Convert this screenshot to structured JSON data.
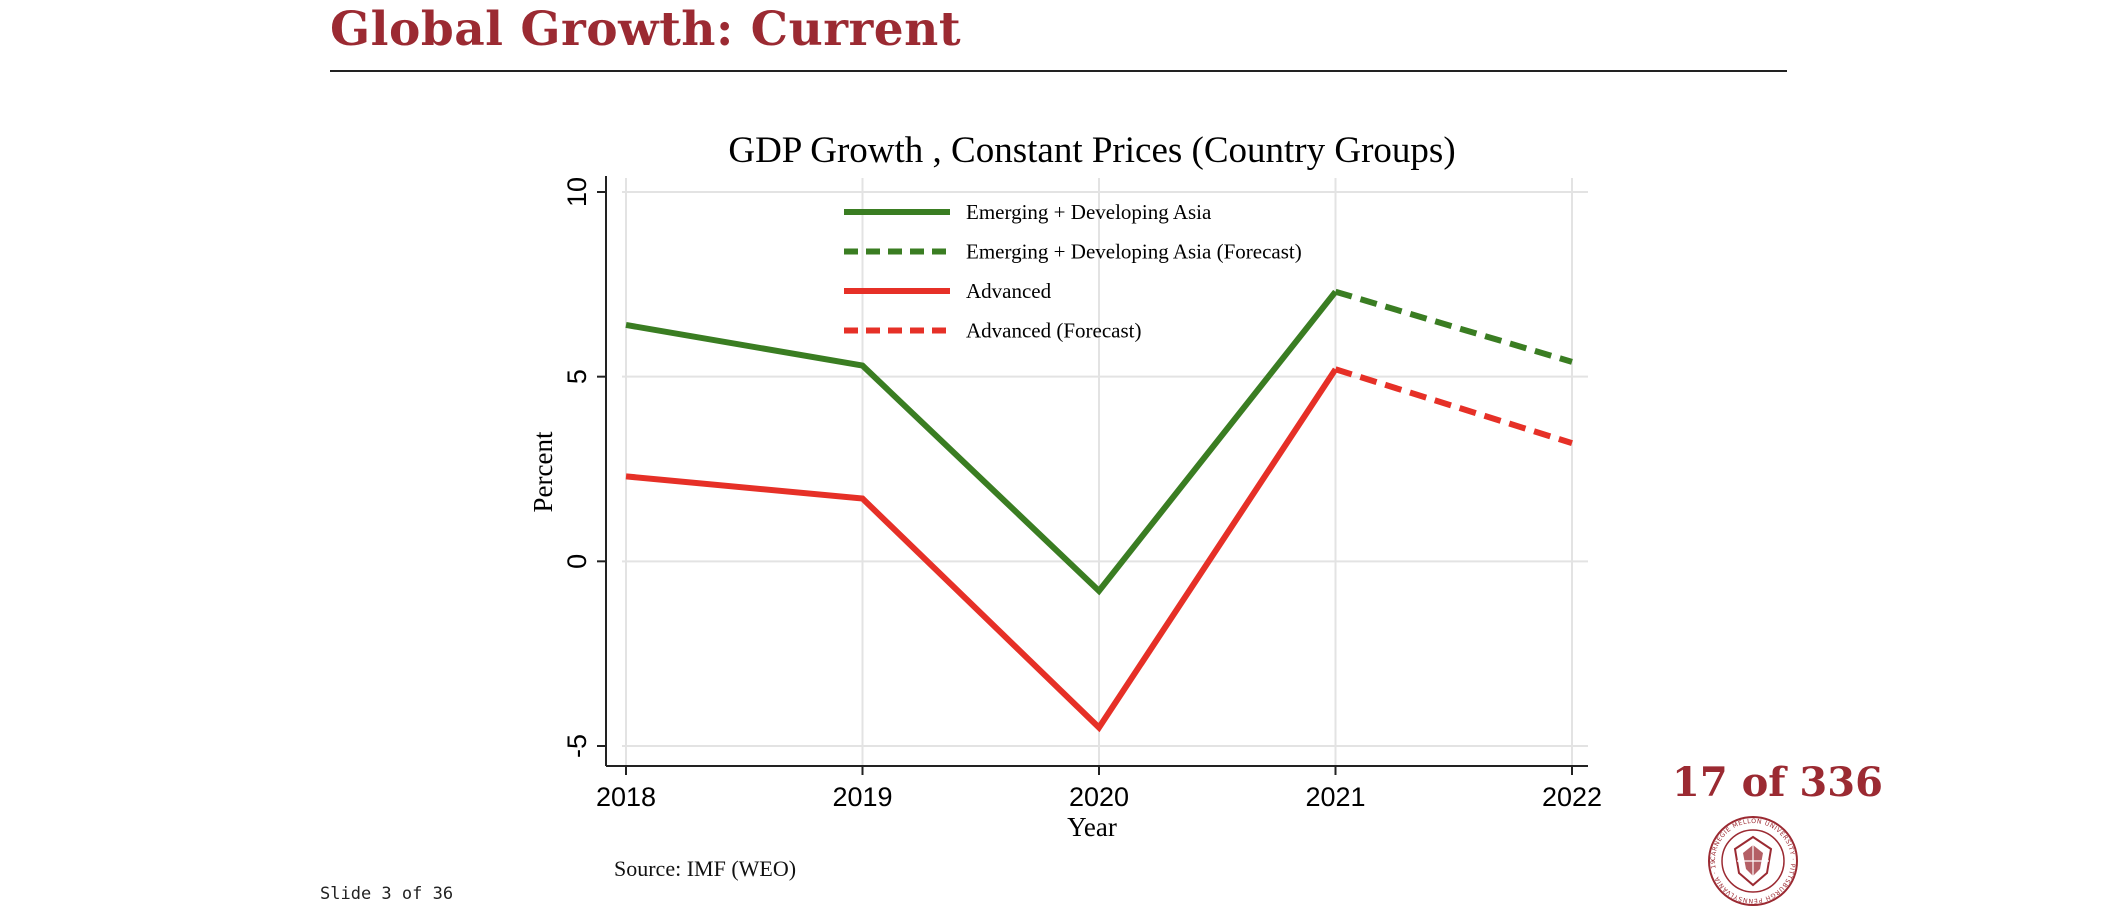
{
  "slide": {
    "title": "Global Growth: Current",
    "source": "Source: IMF (WEO)",
    "slide_indicator": "Slide 3 of 36",
    "page_counter": "17 of 336",
    "seal_text": "CARNEGIE MELLON UNIVERSITY · PITTSBURGH PENNSYLVANIA · 1900"
  },
  "chart_data": {
    "type": "line",
    "title": "GDP Growth , Constant Prices (Country Groups)",
    "xlabel": "Year",
    "ylabel": "Percent",
    "x": [
      2018,
      2019,
      2020,
      2021,
      2022
    ],
    "xlim": [
      2018,
      2022
    ],
    "ylim": [
      -5,
      10
    ],
    "yticks": [
      -5,
      0,
      5,
      10
    ],
    "xticks": [
      2018,
      2019,
      2020,
      2021,
      2022
    ],
    "grid": true,
    "legend_position": "top-center",
    "series": [
      {
        "name": "Emerging + Developing Asia",
        "color": "#3a7d22",
        "dash": false,
        "x": [
          2018,
          2019,
          2020,
          2021
        ],
        "values": [
          6.4,
          5.3,
          -0.8,
          7.3
        ]
      },
      {
        "name": "Emerging + Developing Asia (Forecast)",
        "color": "#3a7d22",
        "dash": true,
        "x": [
          2021,
          2022
        ],
        "values": [
          7.3,
          5.4
        ]
      },
      {
        "name": "Advanced",
        "color": "#e63027",
        "dash": false,
        "x": [
          2018,
          2019,
          2020,
          2021
        ],
        "values": [
          2.3,
          1.7,
          -4.5,
          5.2
        ]
      },
      {
        "name": "Advanced (Forecast)",
        "color": "#e63027",
        "dash": true,
        "x": [
          2021,
          2022
        ],
        "values": [
          5.2,
          3.2
        ]
      }
    ]
  }
}
